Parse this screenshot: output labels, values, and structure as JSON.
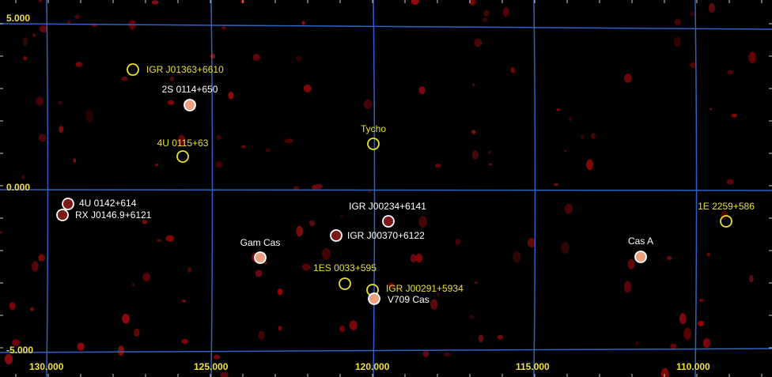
{
  "x_axis": {
    "labels": [
      "130.000",
      "125.000",
      "120.000",
      "115.000",
      "110.000"
    ]
  },
  "y_axis": {
    "labels": [
      "5.000",
      "0.000",
      "-5.000"
    ]
  },
  "grid_color": "#2f63c0",
  "axis_label_color": "#f0e040",
  "sources": [
    {
      "label": "IGR J01363+6610",
      "color": "#e8e030"
    },
    {
      "label": "2S 0114+650",
      "color": "#ffffff"
    },
    {
      "label": "4U 0115+63",
      "color": "#e8e030"
    },
    {
      "label": "Tycho",
      "color": "#e8e030"
    },
    {
      "label": "4U 0142+614",
      "color": "#ffffff"
    },
    {
      "label": "RX J0146.9+6121",
      "color": "#ffffff"
    },
    {
      "label": "IGR J00234+6141",
      "color": "#ffffff"
    },
    {
      "label": "IGR J00370+6122",
      "color": "#ffffff"
    },
    {
      "label": "Gam Cas",
      "color": "#ffffff"
    },
    {
      "label": "Cas A",
      "color": "#ffffff"
    },
    {
      "label": "1E 2259+586",
      "color": "#e8e030"
    },
    {
      "label": "1ES 0033+595",
      "color": "#e8e030"
    },
    {
      "label": "IGR J00291+5934",
      "color": "#e8e030"
    },
    {
      "label": "V709 Cas",
      "color": "#ffffff"
    }
  ]
}
